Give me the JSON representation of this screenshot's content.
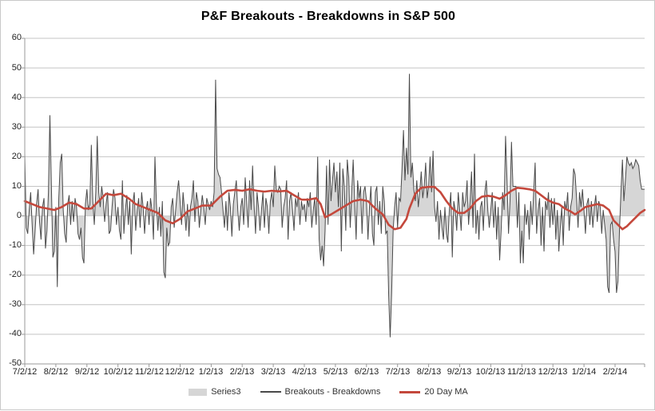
{
  "title": "P&F Breakouts - Breakdowns in S&P 500",
  "legend": {
    "series3_label": "Series3",
    "line_label": "Breakouts - Breakdowns",
    "ma_label": "20 Day MA"
  },
  "colors": {
    "area_fill": "#d6d6d6",
    "series_line": "#4a4a4a",
    "ma_line": "#c4483c",
    "grid": "#c4c4c4",
    "axis": "#9a9a9a",
    "text": "#1f1f1f",
    "frame_border": "#c9c9c9"
  },
  "chart_data": {
    "type": "area",
    "title": "P&F Breakouts - Breakdowns in S&P 500",
    "xlabel": "",
    "ylabel": "",
    "ylim": [
      -50,
      60
    ],
    "grid": true,
    "legend_position": "bottom",
    "yticks": [
      60,
      50,
      40,
      30,
      20,
      10,
      0,
      -10,
      -20,
      -30,
      -40,
      -50
    ],
    "x_labels": [
      "7/2/12",
      "8/2/12",
      "9/2/12",
      "10/2/12",
      "11/2/12",
      "12/2/12",
      "1/2/13",
      "2/2/13",
      "3/2/13",
      "4/2/13",
      "5/2/13",
      "6/2/13",
      "7/2/13",
      "8/2/13",
      "9/2/13",
      "10/2/13",
      "11/2/13",
      "12/2/13",
      "1/2/14",
      "2/2/14"
    ],
    "days_per_month": 21,
    "series": [
      {
        "name": "Series3",
        "render": "area",
        "values_ref": "daily_values_by_month"
      },
      {
        "name": "Breakouts - Breakdowns",
        "render": "line",
        "values_ref": "daily_values_by_month"
      },
      {
        "name": "20 Day MA",
        "render": "line",
        "points_ref": "ma_points"
      }
    ],
    "daily_values_by_month": [
      [
        21,
        -4,
        -6,
        2,
        8,
        -3,
        -13,
        -5,
        4,
        9,
        -2,
        -8,
        3,
        6,
        -11,
        -5,
        8,
        34,
        10,
        -14,
        -12
      ],
      [
        3,
        -24,
        6,
        18,
        21,
        2,
        -6,
        -9,
        4,
        7,
        -3,
        5,
        -2,
        6,
        3,
        -6,
        -8,
        -4,
        -14,
        -16,
        4
      ],
      [
        9,
        2,
        4,
        24,
        5,
        -3,
        8,
        27,
        8,
        3,
        10,
        6,
        -2,
        4,
        8,
        -6,
        -5,
        3,
        9,
        6,
        -3
      ],
      [
        3,
        -5,
        -8,
        12,
        -6,
        2,
        7,
        -3,
        5,
        -13,
        4,
        8,
        -5,
        2,
        6,
        -4,
        8,
        3,
        -6,
        2,
        5
      ],
      [
        -3,
        6,
        2,
        -8,
        20,
        4,
        -5,
        3,
        -7,
        5,
        -19,
        -21,
        -4,
        -10,
        -9,
        3,
        6,
        -4,
        2,
        8,
        12
      ],
      [
        5,
        -3,
        8,
        2,
        -5,
        4,
        -7,
        3,
        6,
        12,
        -2,
        8,
        5,
        -4,
        2,
        7,
        3,
        -3,
        6,
        4,
        2
      ],
      [
        5,
        3,
        8,
        46,
        16,
        14,
        13,
        8,
        2,
        -4,
        5,
        -5,
        8,
        3,
        -7,
        4,
        8,
        12,
        2,
        -5,
        3
      ],
      [
        6,
        -3,
        13,
        5,
        -4,
        12,
        2,
        17,
        4,
        -6,
        8,
        3,
        -5,
        2,
        8,
        -4,
        6,
        3,
        -6,
        5,
        8
      ],
      [
        3,
        17,
        9,
        8,
        10,
        9,
        -4,
        3,
        6,
        12,
        -8,
        5,
        8,
        2,
        -5,
        6,
        3,
        8,
        -3,
        5,
        2
      ],
      [
        4,
        -2,
        6,
        3,
        8,
        -4,
        2,
        6,
        -3,
        20,
        -8,
        -15,
        -10,
        -17,
        -5,
        17,
        -3,
        19,
        5,
        12,
        18
      ],
      [
        8,
        15,
        3,
        18,
        -12,
        16,
        10,
        -5,
        19,
        13,
        -4,
        8,
        19,
        5,
        -8,
        12,
        6,
        10,
        -6,
        8,
        10
      ],
      [
        5,
        -8,
        3,
        10,
        -6,
        -10,
        8,
        10,
        -3,
        5,
        -6,
        10,
        5,
        -6,
        -5,
        -27,
        -41,
        -26,
        -5,
        3,
        8
      ],
      [
        -4,
        6,
        5,
        16,
        29,
        12,
        23,
        14,
        48,
        13,
        18,
        9,
        5,
        12,
        3,
        8,
        15,
        6,
        10,
        18,
        6
      ],
      [
        10,
        20,
        8,
        22,
        3,
        -2,
        5,
        -8,
        2,
        -4,
        -8,
        3,
        -6,
        -9,
        2,
        8,
        -14,
        5,
        2,
        -5,
        8
      ],
      [
        2,
        -5,
        8,
        3,
        5,
        12,
        -3,
        5,
        15,
        -4,
        21,
        -6,
        2,
        -8,
        3,
        5,
        -5,
        8,
        12,
        2,
        -4
      ],
      [
        2,
        8,
        -4,
        5,
        -8,
        3,
        -15,
        -5,
        8,
        2,
        27,
        12,
        -6,
        5,
        25,
        10,
        10,
        10,
        -4,
        8,
        -16
      ],
      [
        -5,
        -16,
        4,
        -3,
        2,
        -8,
        5,
        -3,
        8,
        18,
        -6,
        2,
        6,
        -10,
        3,
        -12,
        5,
        2,
        8,
        -4,
        6
      ],
      [
        -3,
        6,
        -8,
        2,
        -12,
        -4,
        3,
        -10,
        5,
        2,
        8,
        -5,
        3,
        6,
        16,
        14,
        6,
        -4,
        8,
        3,
        9
      ],
      [
        2,
        -6,
        4,
        6,
        -3,
        5,
        -4,
        3,
        7,
        -2,
        5,
        3,
        -6,
        2,
        -3,
        -8,
        -24,
        -26,
        -3,
        -2,
        -8
      ],
      [
        -12,
        -26,
        -22,
        -5,
        8,
        19,
        5,
        12,
        20,
        18,
        17,
        18,
        16,
        17,
        19,
        18,
        17,
        12,
        9,
        9,
        9
      ]
    ],
    "ma_points": [
      [
        0,
        5
      ],
      [
        5,
        4
      ],
      [
        10,
        3
      ],
      [
        15,
        2.5
      ],
      [
        20,
        2
      ],
      [
        25,
        3
      ],
      [
        30,
        4.5
      ],
      [
        35,
        4
      ],
      [
        40,
        2.5
      ],
      [
        45,
        2.5
      ],
      [
        50,
        5
      ],
      [
        55,
        7.5
      ],
      [
        60,
        7
      ],
      [
        65,
        7.5
      ],
      [
        70,
        6
      ],
      [
        75,
        4
      ],
      [
        80,
        3
      ],
      [
        85,
        2
      ],
      [
        90,
        1
      ],
      [
        95,
        -1.5
      ],
      [
        100,
        -2.5
      ],
      [
        105,
        -1
      ],
      [
        110,
        1.5
      ],
      [
        115,
        2.5
      ],
      [
        120,
        3.5
      ],
      [
        126,
        3.5
      ],
      [
        132,
        6.5
      ],
      [
        137,
        8.5
      ],
      [
        142,
        8.8
      ],
      [
        147,
        8.5
      ],
      [
        152,
        9
      ],
      [
        157,
        8.5
      ],
      [
        162,
        8.2
      ],
      [
        167,
        8.5
      ],
      [
        172,
        8.3
      ],
      [
        177,
        8.5
      ],
      [
        182,
        7
      ],
      [
        187,
        5.5
      ],
      [
        192,
        5.5
      ],
      [
        197,
        6
      ],
      [
        200,
        4
      ],
      [
        203,
        -0.5
      ],
      [
        207,
        0.5
      ],
      [
        212,
        2
      ],
      [
        217,
        3.5
      ],
      [
        222,
        5
      ],
      [
        227,
        5.5
      ],
      [
        232,
        5
      ],
      [
        237,
        2.5
      ],
      [
        242,
        0.5
      ],
      [
        246,
        -3
      ],
      [
        250,
        -4.5
      ],
      [
        254,
        -4
      ],
      [
        258,
        -1
      ],
      [
        260,
        2.5
      ],
      [
        264,
        7.5
      ],
      [
        268,
        9.5
      ],
      [
        273,
        9.8
      ],
      [
        277,
        9.8
      ],
      [
        281,
        8
      ],
      [
        285,
        5
      ],
      [
        289,
        2.5
      ],
      [
        293,
        1
      ],
      [
        297,
        1
      ],
      [
        301,
        2.5
      ],
      [
        305,
        5
      ],
      [
        309,
        6.5
      ],
      [
        313,
        6.8
      ],
      [
        317,
        6.5
      ],
      [
        321,
        5.8
      ],
      [
        325,
        7
      ],
      [
        329,
        8.5
      ],
      [
        333,
        9.5
      ],
      [
        337,
        9.3
      ],
      [
        341,
        9
      ],
      [
        345,
        8.5
      ],
      [
        349,
        7
      ],
      [
        353,
        5.5
      ],
      [
        357,
        4.5
      ],
      [
        361,
        4
      ],
      [
        365,
        2.5
      ],
      [
        369,
        1.5
      ],
      [
        372,
        0.5
      ],
      [
        375,
        1.5
      ],
      [
        379,
        3
      ],
      [
        383,
        3.5
      ],
      [
        387,
        4
      ],
      [
        391,
        3.5
      ],
      [
        395,
        2
      ],
      [
        398,
        -1.5
      ],
      [
        401,
        -3
      ],
      [
        404,
        -4.5
      ],
      [
        407,
        -3.5
      ],
      [
        410,
        -2
      ],
      [
        413,
        -0.5
      ],
      [
        416,
        1
      ],
      [
        419,
        2
      ]
    ]
  }
}
